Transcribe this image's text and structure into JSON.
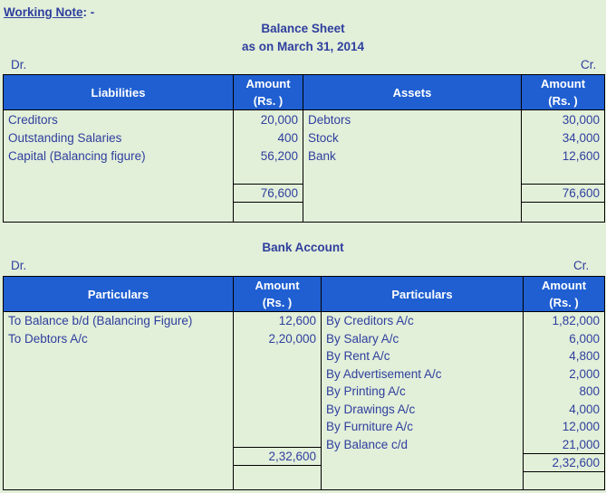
{
  "heading": "Working Note",
  "heading_suffix": ": -",
  "balance_sheet": {
    "title": "Balance Sheet",
    "subtitle": "as on March 31, 2014",
    "dr": "Dr.",
    "cr": "Cr.",
    "headers": {
      "left_particulars": "Liabilities",
      "amount_line1": "Amount",
      "amount_line2": "(Rs. )",
      "right_particulars": "Assets"
    },
    "left_rows": [
      {
        "label": "Creditors",
        "amount": "20,000"
      },
      {
        "label": "Outstanding Salaries",
        "amount": "400"
      },
      {
        "label": "Capital (Balancing figure)",
        "amount": "56,200"
      }
    ],
    "right_rows": [
      {
        "label": "Debtors",
        "amount": "30,000"
      },
      {
        "label": "Stock",
        "amount": "34,000"
      },
      {
        "label": "Bank",
        "amount": "12,600"
      }
    ],
    "left_total": "76,600",
    "right_total": "76,600"
  },
  "bank_account": {
    "title": "Bank Account",
    "dr": "Dr.",
    "cr": "Cr.",
    "headers": {
      "left_particulars": "Particulars",
      "amount_line1": "Amount",
      "amount_line2": "(Rs. )",
      "right_particulars": "Particulars"
    },
    "left_rows": [
      {
        "label": "To Balance b/d (Balancing Figure)",
        "amount": "12,600"
      },
      {
        "label": "To Debtors A/c",
        "amount": "2,20,000"
      }
    ],
    "right_rows": [
      {
        "label": "By Creditors A/c",
        "amount": "1,82,000"
      },
      {
        "label": "By Salary A/c",
        "amount": "6,000"
      },
      {
        "label": "By Rent A/c",
        "amount": "4,800"
      },
      {
        "label": "By Advertisement A/c",
        "amount": "2,000"
      },
      {
        "label": "By Printing A/c",
        "amount": "800"
      },
      {
        "label": "By Drawings A/c",
        "amount": "4,000"
      },
      {
        "label": "By Furniture A/c",
        "amount": "12,000"
      },
      {
        "label": "By Balance c/d",
        "amount": "21,000"
      }
    ],
    "left_total": "2,32,600",
    "right_total": "2,32,600"
  }
}
